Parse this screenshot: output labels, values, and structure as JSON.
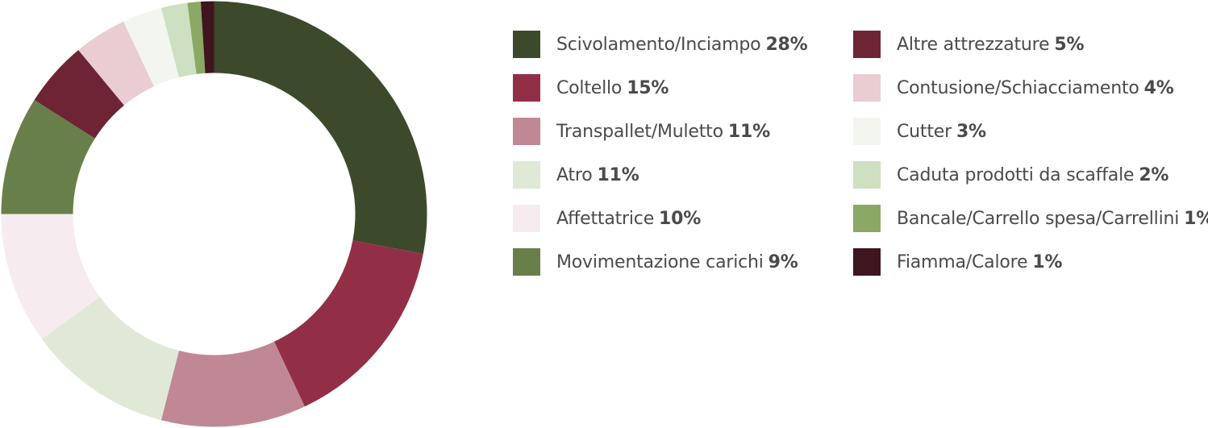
{
  "chart_data": {
    "type": "pie",
    "slices": [
      {
        "label": "Scivolamento/Inciampo",
        "value": 28,
        "value_label": "28%",
        "color": "#3c4a2b"
      },
      {
        "label": "Coltello",
        "value": 15,
        "value_label": "15%",
        "color": "#922f46"
      },
      {
        "label": "Transpallet/Muletto",
        "value": 11,
        "value_label": "11%",
        "color": "#c08894"
      },
      {
        "label": "Atro",
        "value": 11,
        "value_label": "11%",
        "color": "#e0e9d8"
      },
      {
        "label": "Affettatrice",
        "value": 10,
        "value_label": "10%",
        "color": "#f6ebef"
      },
      {
        "label": "Movimentazione carichi",
        "value": 9,
        "value_label": "9%",
        "color": "#697f4a"
      },
      {
        "label": "Altre attrezzature",
        "value": 5,
        "value_label": "5%",
        "color": "#6e2435"
      },
      {
        "label": "Contusione/Schiacciamento",
        "value": 4,
        "value_label": "4%",
        "color": "#e9cdd2"
      },
      {
        "label": "Cutter",
        "value": 3,
        "value_label": "3%",
        "color": "#f3f6ee"
      },
      {
        "label": "Caduta prodotti da scaffale",
        "value": 2,
        "value_label": "2%",
        "color": "#cfdfc2"
      },
      {
        "label": "Bancale/Carrello spesa/Carrellini",
        "value": 1,
        "value_label": "1%",
        "color": "#8ba864"
      },
      {
        "label": "Fiamma/Calore",
        "value": 1,
        "value_label": "1%",
        "color": "#3f151f"
      }
    ],
    "legend_placement": "right",
    "legend_columns": 2
  }
}
